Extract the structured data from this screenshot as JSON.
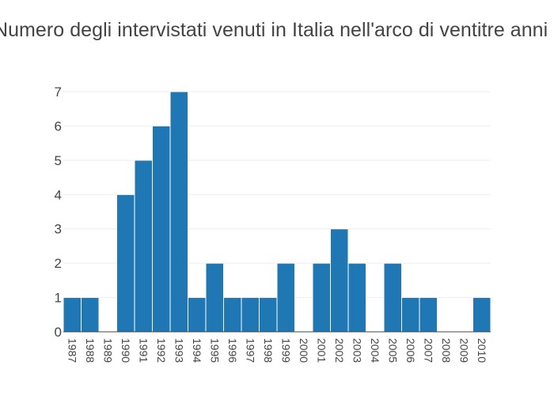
{
  "chart_data": {
    "type": "bar",
    "title": "Numero degli intervistati venuti in Italia nell'arco di ventitre anni",
    "xlabel": "",
    "ylabel": "",
    "categories": [
      "1987",
      "1988",
      "1989",
      "1990",
      "1991",
      "1992",
      "1993",
      "1994",
      "1995",
      "1996",
      "1997",
      "1998",
      "1999",
      "2000",
      "2001",
      "2002",
      "2003",
      "2004",
      "2005",
      "2006",
      "2007",
      "2008",
      "2009",
      "2010"
    ],
    "values": [
      1,
      1,
      0,
      4,
      5,
      6,
      7,
      1,
      2,
      1,
      1,
      1,
      2,
      0,
      2,
      3,
      2,
      0,
      2,
      1,
      1,
      0,
      0,
      1
    ],
    "yticks": [
      0,
      1,
      2,
      3,
      4,
      5,
      6,
      7
    ],
    "ylim": [
      0,
      7
    ],
    "grid": true,
    "bar_color": "#1f77b4"
  }
}
